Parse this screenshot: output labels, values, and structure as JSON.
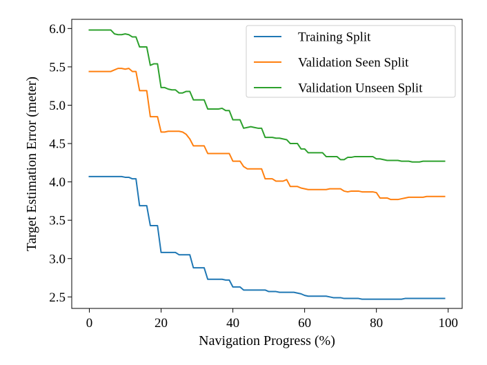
{
  "chart_data": {
    "type": "line",
    "title": "",
    "xlabel": "Navigation Progress (%)",
    "ylabel": "Target Estimation Error (meter)",
    "xlim": [
      -4.9,
      103.9
    ],
    "ylim": [
      2.35,
      6.12
    ],
    "xticks": [
      0,
      20,
      40,
      60,
      80,
      100
    ],
    "yticks": [
      2.5,
      3.0,
      3.5,
      4.0,
      4.5,
      5.0,
      5.5,
      6.0
    ],
    "xtick_labels": [
      "0",
      "20",
      "40",
      "60",
      "80",
      "100"
    ],
    "ytick_labels": [
      "2.5",
      "3.0",
      "3.5",
      "4.0",
      "4.5",
      "5.0",
      "5.5",
      "6.0"
    ],
    "grid": false,
    "legend_position": "top-right",
    "series": [
      {
        "name": "Training Split",
        "color": "#1f77b4",
        "x": [
          0,
          1,
          2,
          3,
          4,
          5,
          6,
          7,
          8,
          9,
          10,
          11,
          12,
          13,
          14,
          15,
          16,
          17,
          18,
          19,
          20,
          21,
          22,
          23,
          24,
          25,
          26,
          27,
          28,
          29,
          30,
          31,
          32,
          33,
          34,
          35,
          36,
          37,
          38,
          39,
          40,
          41,
          42,
          43,
          44,
          45,
          46,
          47,
          48,
          49,
          50,
          51,
          52,
          53,
          54,
          55,
          56,
          57,
          58,
          59,
          60,
          61,
          62,
          63,
          64,
          65,
          66,
          67,
          68,
          69,
          70,
          71,
          72,
          73,
          74,
          75,
          76,
          77,
          78,
          79,
          80,
          81,
          82,
          83,
          84,
          85,
          86,
          87,
          88,
          89,
          90,
          91,
          92,
          93,
          94,
          95,
          96,
          97,
          98,
          99
        ],
        "y": [
          4.07,
          4.07,
          4.07,
          4.07,
          4.07,
          4.07,
          4.07,
          4.07,
          4.07,
          4.07,
          4.06,
          4.06,
          4.04,
          4.04,
          3.69,
          3.69,
          3.69,
          3.43,
          3.43,
          3.43,
          3.08,
          3.08,
          3.08,
          3.08,
          3.08,
          3.05,
          3.05,
          3.05,
          3.05,
          2.88,
          2.88,
          2.88,
          2.88,
          2.73,
          2.73,
          2.73,
          2.73,
          2.73,
          2.72,
          2.72,
          2.63,
          2.63,
          2.63,
          2.59,
          2.59,
          2.59,
          2.59,
          2.59,
          2.59,
          2.59,
          2.57,
          2.57,
          2.57,
          2.56,
          2.56,
          2.56,
          2.56,
          2.56,
          2.55,
          2.54,
          2.52,
          2.51,
          2.51,
          2.51,
          2.51,
          2.51,
          2.51,
          2.5,
          2.49,
          2.49,
          2.49,
          2.48,
          2.48,
          2.48,
          2.48,
          2.48,
          2.47,
          2.47,
          2.47,
          2.47,
          2.47,
          2.47,
          2.47,
          2.47,
          2.47,
          2.47,
          2.47,
          2.47,
          2.48,
          2.48,
          2.48,
          2.48,
          2.48,
          2.48,
          2.48,
          2.48,
          2.48,
          2.48,
          2.48,
          2.48
        ]
      },
      {
        "name": "Validation Seen Split",
        "color": "#ff7f0e",
        "x": [
          0,
          1,
          2,
          3,
          4,
          5,
          6,
          7,
          8,
          9,
          10,
          11,
          12,
          13,
          14,
          15,
          16,
          17,
          18,
          19,
          20,
          21,
          22,
          23,
          24,
          25,
          26,
          27,
          28,
          29,
          30,
          31,
          32,
          33,
          34,
          35,
          36,
          37,
          38,
          39,
          40,
          41,
          42,
          43,
          44,
          45,
          46,
          47,
          48,
          49,
          50,
          51,
          52,
          53,
          54,
          55,
          56,
          57,
          58,
          59,
          60,
          61,
          62,
          63,
          64,
          65,
          66,
          67,
          68,
          69,
          70,
          71,
          72,
          73,
          74,
          75,
          76,
          77,
          78,
          79,
          80,
          81,
          82,
          83,
          84,
          85,
          86,
          87,
          88,
          89,
          90,
          91,
          92,
          93,
          94,
          95,
          96,
          97,
          98,
          99
        ],
        "y": [
          5.44,
          5.44,
          5.44,
          5.44,
          5.44,
          5.44,
          5.44,
          5.46,
          5.48,
          5.48,
          5.47,
          5.48,
          5.44,
          5.44,
          5.19,
          5.19,
          5.19,
          4.85,
          4.85,
          4.85,
          4.65,
          4.65,
          4.66,
          4.66,
          4.66,
          4.66,
          4.65,
          4.62,
          4.56,
          4.47,
          4.47,
          4.47,
          4.47,
          4.37,
          4.37,
          4.37,
          4.37,
          4.37,
          4.37,
          4.37,
          4.27,
          4.27,
          4.27,
          4.2,
          4.17,
          4.17,
          4.17,
          4.17,
          4.17,
          4.04,
          4.04,
          4.04,
          4.01,
          4.01,
          4.01,
          4.03,
          3.94,
          3.94,
          3.94,
          3.92,
          3.91,
          3.9,
          3.9,
          3.9,
          3.9,
          3.9,
          3.9,
          3.91,
          3.91,
          3.91,
          3.91,
          3.88,
          3.87,
          3.88,
          3.88,
          3.88,
          3.87,
          3.87,
          3.87,
          3.87,
          3.86,
          3.79,
          3.79,
          3.79,
          3.77,
          3.77,
          3.77,
          3.78,
          3.79,
          3.8,
          3.8,
          3.8,
          3.8,
          3.8,
          3.81,
          3.81,
          3.81,
          3.81,
          3.81,
          3.81
        ]
      },
      {
        "name": "Validation Unseen Split",
        "color": "#2ca02c",
        "x": [
          0,
          1,
          2,
          3,
          4,
          5,
          6,
          7,
          8,
          9,
          10,
          11,
          12,
          13,
          14,
          15,
          16,
          17,
          18,
          19,
          20,
          21,
          22,
          23,
          24,
          25,
          26,
          27,
          28,
          29,
          30,
          31,
          32,
          33,
          34,
          35,
          36,
          37,
          38,
          39,
          40,
          41,
          42,
          43,
          44,
          45,
          46,
          47,
          48,
          49,
          50,
          51,
          52,
          53,
          54,
          55,
          56,
          57,
          58,
          59,
          60,
          61,
          62,
          63,
          64,
          65,
          66,
          67,
          68,
          69,
          70,
          71,
          72,
          73,
          74,
          75,
          76,
          77,
          78,
          79,
          80,
          81,
          82,
          83,
          84,
          85,
          86,
          87,
          88,
          89,
          90,
          91,
          92,
          93,
          94,
          95,
          96,
          97,
          98,
          99
        ],
        "y": [
          5.98,
          5.98,
          5.98,
          5.98,
          5.98,
          5.98,
          5.98,
          5.93,
          5.92,
          5.92,
          5.93,
          5.92,
          5.89,
          5.89,
          5.76,
          5.76,
          5.76,
          5.52,
          5.54,
          5.54,
          5.23,
          5.23,
          5.21,
          5.2,
          5.2,
          5.16,
          5.16,
          5.18,
          5.18,
          5.07,
          5.07,
          5.07,
          5.07,
          4.95,
          4.95,
          4.95,
          4.95,
          4.96,
          4.93,
          4.93,
          4.81,
          4.81,
          4.81,
          4.7,
          4.71,
          4.72,
          4.71,
          4.7,
          4.7,
          4.58,
          4.58,
          4.58,
          4.57,
          4.57,
          4.56,
          4.55,
          4.5,
          4.5,
          4.5,
          4.43,
          4.43,
          4.38,
          4.38,
          4.38,
          4.38,
          4.38,
          4.33,
          4.33,
          4.33,
          4.33,
          4.29,
          4.29,
          4.32,
          4.32,
          4.33,
          4.33,
          4.33,
          4.33,
          4.33,
          4.33,
          4.3,
          4.3,
          4.29,
          4.28,
          4.28,
          4.28,
          4.28,
          4.27,
          4.27,
          4.27,
          4.26,
          4.26,
          4.26,
          4.27,
          4.27,
          4.27,
          4.27,
          4.27,
          4.27,
          4.27
        ]
      }
    ]
  }
}
